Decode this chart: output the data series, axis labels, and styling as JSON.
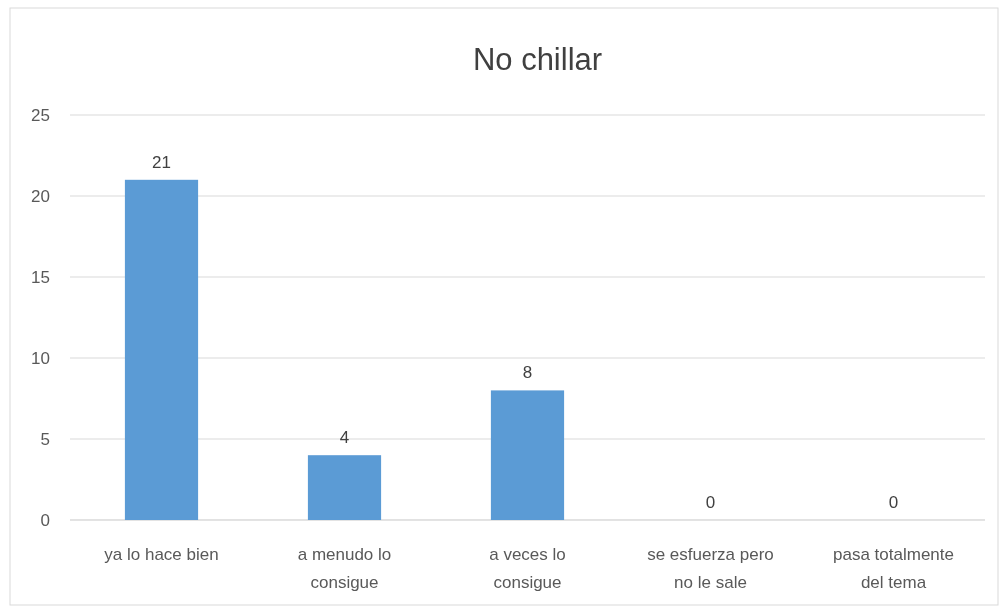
{
  "chart_data": {
    "type": "bar",
    "title": "No chillar",
    "categories": [
      "ya lo hace bien",
      "a menudo lo consigue",
      "a veces lo consigue",
      "se esfuerza pero no le sale",
      "pasa totalmente del tema"
    ],
    "values": [
      21,
      4,
      8,
      0,
      0
    ],
    "color": "#5b9bd5",
    "ylim": [
      0,
      25
    ],
    "yticks": [
      0,
      5,
      10,
      15,
      20,
      25
    ],
    "grid": "y",
    "data_labels": true
  }
}
